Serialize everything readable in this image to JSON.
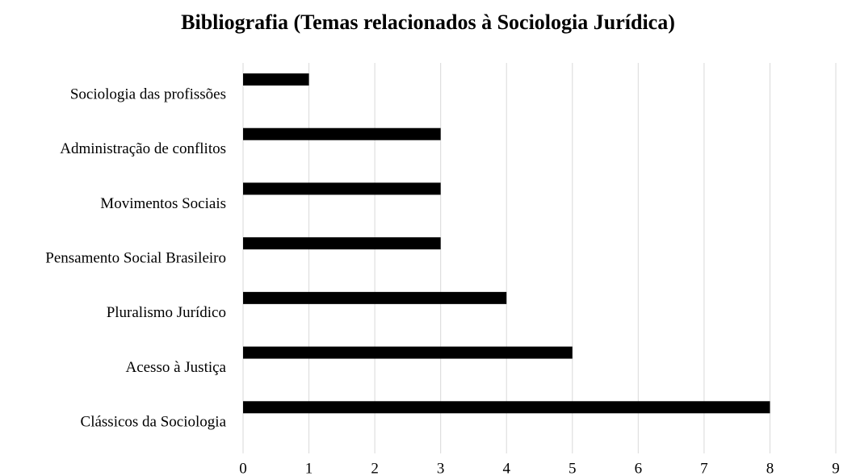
{
  "chart_data": {
    "type": "barh",
    "title": "Bibliografia (Temas relacionados à Sociologia Jurídica)",
    "categories": [
      "Sociologia das profissões",
      "Administração de conflitos",
      "Movimentos Sociais",
      "Pensamento Social Brasileiro",
      "Pluralismo Jurídico",
      "Acesso à Justiça",
      "Clássicos da Sociologia"
    ],
    "values": [
      1,
      3,
      3,
      3,
      4,
      5,
      8
    ],
    "color": "#000000",
    "xlim": [
      0,
      9
    ],
    "xticks": [
      0,
      1,
      2,
      3,
      4,
      5,
      6,
      7,
      8,
      9
    ],
    "grid": true
  }
}
